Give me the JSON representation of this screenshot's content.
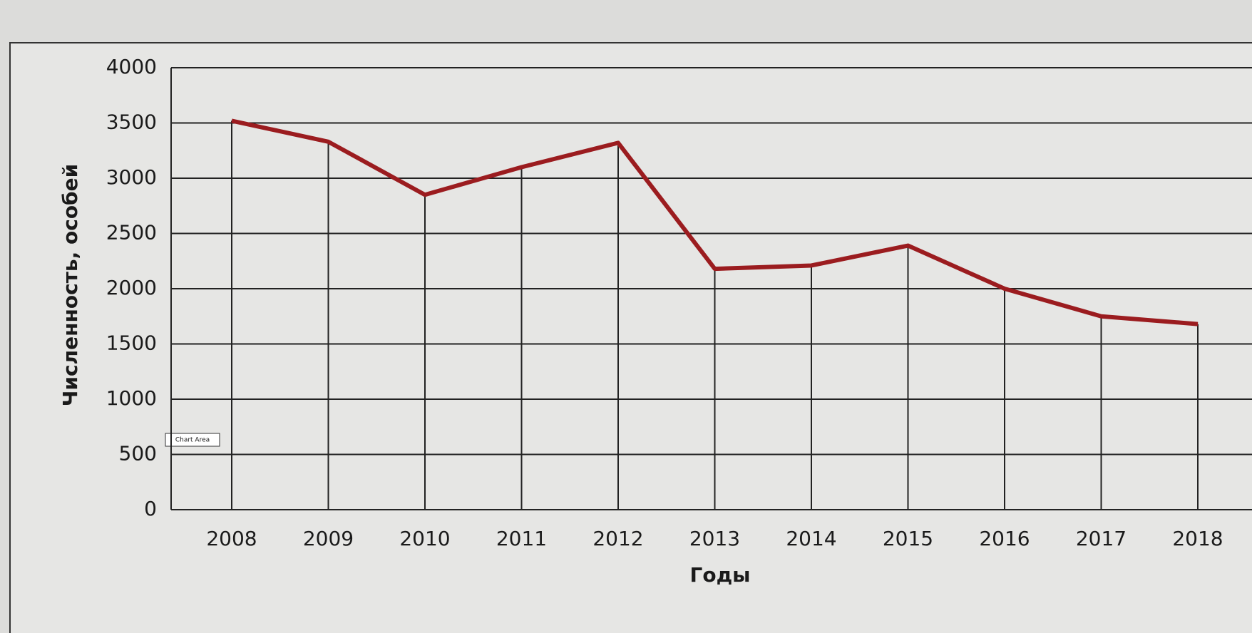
{
  "chart_data": {
    "type": "line",
    "x_label": "Годы",
    "y_label": "Численность, особей",
    "annotation": "Chart Area",
    "categories": [
      "2008",
      "2009",
      "2010",
      "2011",
      "2012",
      "2013",
      "2014",
      "2015",
      "2016",
      "2017",
      "2018"
    ],
    "series": [
      {
        "name": "Численность",
        "color": "#9b1c1f",
        "values": [
          3520,
          3330,
          2850,
          3100,
          3320,
          2180,
          2210,
          2390,
          2000,
          1750,
          1680
        ]
      }
    ],
    "ylim": [
      0,
      4000
    ],
    "yticks": [
      0,
      500,
      1000,
      1500,
      2000,
      2500,
      3000,
      3500,
      4000
    ],
    "grid": true,
    "drop_lines": true
  }
}
